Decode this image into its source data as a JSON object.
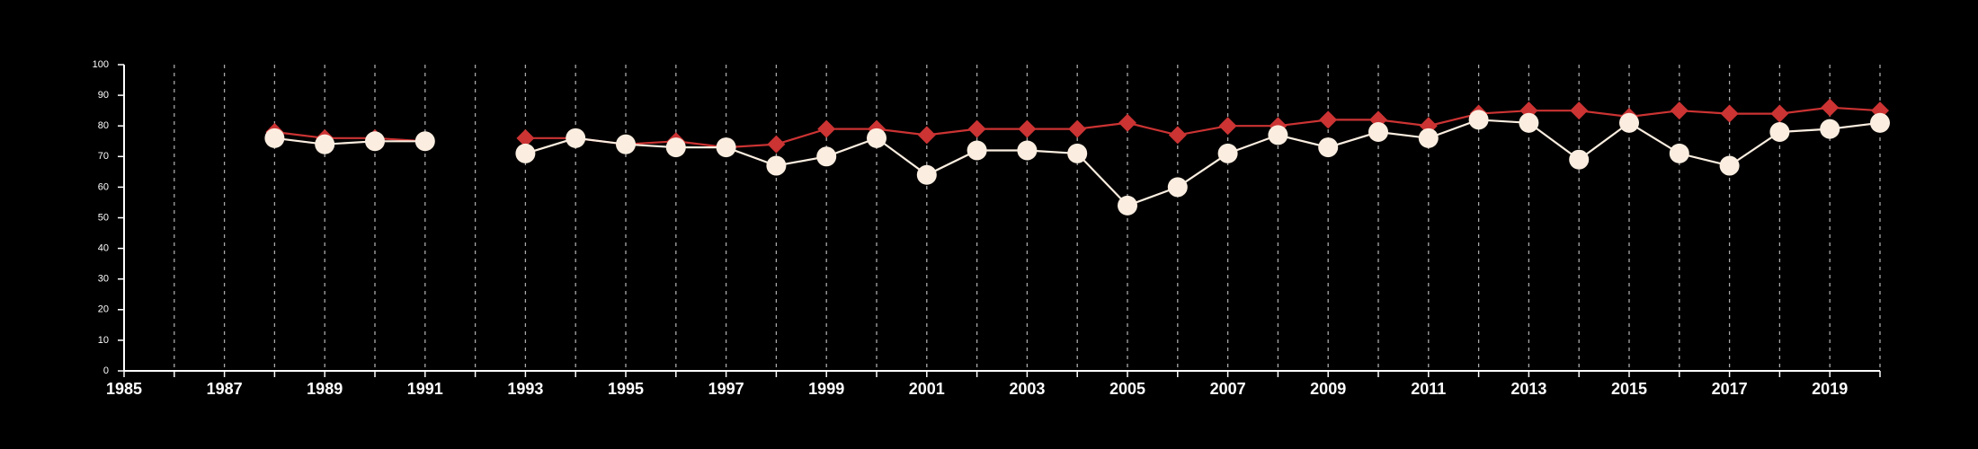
{
  "chart_data": {
    "type": "line",
    "title": "",
    "xlabel": "",
    "ylabel": "",
    "xlim": [
      1985,
      2020
    ],
    "ylim": [
      0,
      100
    ],
    "y_ticks": [
      0,
      10,
      20,
      30,
      40,
      50,
      60,
      70,
      80,
      90,
      100
    ],
    "x_tick_labels": [
      1985,
      1987,
      1989,
      1991,
      1993,
      1995,
      1997,
      1999,
      2001,
      2003,
      2005,
      2007,
      2009,
      2011,
      2013,
      2015,
      2017,
      2019
    ],
    "grid": "vertical dashed lines at every year",
    "legend": "none",
    "background_color": "#000000",
    "series": [
      {
        "marker": "diamond",
        "color": "#cc3333",
        "x": [
          1988,
          1989,
          1990,
          1991,
          1993,
          1994,
          1995,
          1996,
          1997,
          1998,
          1999,
          2000,
          2001,
          2002,
          2003,
          2004,
          2005,
          2006,
          2007,
          2008,
          2009,
          2010,
          2011,
          2012,
          2013,
          2014,
          2015,
          2016,
          2017,
          2018,
          2019,
          2020
        ],
        "y": [
          78,
          76,
          76,
          75,
          76,
          76,
          74,
          75,
          73,
          74,
          79,
          79,
          77,
          79,
          79,
          79,
          81,
          77,
          80,
          80,
          82,
          82,
          80,
          84,
          85,
          85,
          83,
          85,
          84,
          84,
          86,
          85
        ]
      },
      {
        "marker": "circle",
        "color": "#fbeee0",
        "x": [
          1988,
          1989,
          1990,
          1991,
          1993,
          1994,
          1995,
          1996,
          1997,
          1998,
          1999,
          2000,
          2001,
          2002,
          2003,
          2004,
          2005,
          2006,
          2007,
          2008,
          2009,
          2010,
          2011,
          2012,
          2013,
          2014,
          2015,
          2016,
          2017,
          2018,
          2019,
          2020
        ],
        "y": [
          76,
          74,
          75,
          75,
          71,
          76,
          74,
          73,
          73,
          67,
          70,
          76,
          64,
          72,
          72,
          71,
          54,
          60,
          71,
          77,
          73,
          78,
          76,
          82,
          81,
          69,
          81,
          71,
          67,
          78,
          79,
          81
        ]
      }
    ]
  }
}
